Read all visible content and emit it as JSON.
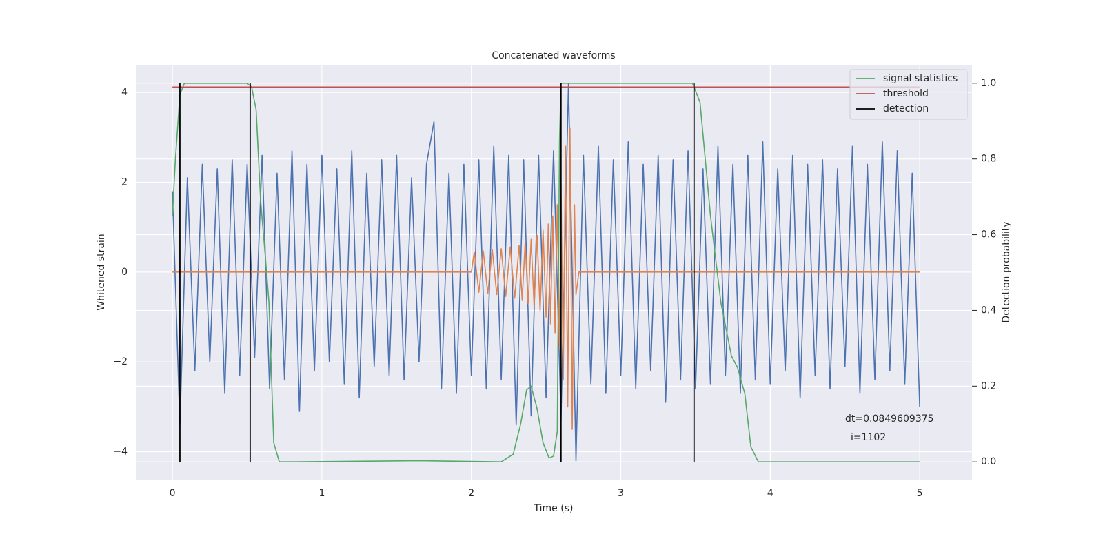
{
  "chart_data": {
    "type": "line",
    "title": "Concatenated waveforms",
    "xlabel": "Time (s)",
    "ylabel": "Whitened strain",
    "y2label": "Detection probability",
    "xlim": [
      -0.245,
      5.35
    ],
    "ylim": [
      -4.62,
      4.6
    ],
    "y2lim": [
      -0.047,
      1.047
    ],
    "xticks": [
      0,
      1,
      2,
      3,
      4,
      5
    ],
    "yticks": [
      {
        "value": -4,
        "label": "−4"
      },
      {
        "value": -2,
        "label": "−2"
      },
      0,
      2,
      4
    ],
    "y2ticks": [
      {
        "value": 0,
        "label": "0.0"
      },
      0.2,
      0.4,
      0.6,
      0.8,
      {
        "value": 1,
        "label": "1.0"
      }
    ],
    "grid": true,
    "legend": "upper right",
    "series": [
      {
        "color": "#4c72b0",
        "x": [
          0,
          0.05,
          0.1,
          0.15,
          0.2,
          0.25,
          0.3,
          0.35,
          0.4,
          0.45,
          0.5,
          0.55,
          0.6,
          0.65,
          0.7,
          0.75,
          0.8,
          0.85,
          0.9,
          0.95,
          1,
          1.05,
          1.1,
          1.15,
          1.2,
          1.25,
          1.3,
          1.35,
          1.4,
          1.45,
          1.5,
          1.55,
          1.6,
          1.65,
          1.7,
          1.75,
          1.8,
          1.85,
          1.9,
          1.95,
          2,
          2.05,
          2.1,
          2.15,
          2.2,
          2.25,
          2.3,
          2.35,
          2.4,
          2.45,
          2.5,
          2.55,
          2.6,
          2.65,
          2.7,
          2.75,
          2.8,
          2.85,
          2.9,
          2.95,
          3,
          3.05,
          3.1,
          3.15,
          3.2,
          3.25,
          3.3,
          3.35,
          3.4,
          3.45,
          3.5,
          3.55,
          3.6,
          3.65,
          3.7,
          3.75,
          3.8,
          3.85,
          3.9,
          3.95,
          4,
          4.05,
          4.1,
          4.15,
          4.2,
          4.25,
          4.3,
          4.35,
          4.4,
          4.45,
          4.5,
          4.55,
          4.6,
          4.65,
          4.7,
          4.75,
          4.8,
          4.85,
          4.9,
          4.95,
          5
        ],
        "values": [
          1.8,
          -3.4,
          2.1,
          -2.2,
          2.4,
          -2.0,
          2.3,
          -2.7,
          2.5,
          -2.3,
          2.4,
          -1.9,
          2.6,
          -2.6,
          2.2,
          -2.4,
          2.7,
          -3.1,
          2.4,
          -2.2,
          2.6,
          -2.0,
          2.3,
          -2.5,
          2.7,
          -2.8,
          2.2,
          -2.1,
          2.5,
          -2.3,
          2.6,
          -2.4,
          2.1,
          -2.0,
          2.4,
          3.35,
          -2.6,
          2.2,
          -2.7,
          2.4,
          -2.3,
          2.5,
          -2.6,
          2.8,
          -2.4,
          2.6,
          -3.4,
          2.5,
          -3.2,
          2.6,
          -2.8,
          2.7,
          -3.3,
          4.2,
          -4.2,
          2.6,
          -2.5,
          2.8,
          -2.7,
          2.5,
          -2.3,
          2.9,
          -2.6,
          2.4,
          -2.2,
          2.6,
          -2.9,
          2.5,
          -2.4,
          2.7,
          -2.6,
          2.3,
          -2.5,
          2.8,
          -2.3,
          2.4,
          -2.7,
          2.6,
          -2.4,
          2.9,
          -2.5,
          2.3,
          -2.2,
          2.6,
          -2.8,
          2.4,
          -2.3,
          2.5,
          -2.6,
          2.3,
          -2.1,
          2.8,
          -2.7,
          2.4,
          -2.4,
          2.9,
          -2.2,
          2.7,
          -2.5,
          2.2,
          -3.0
        ]
      },
      {
        "color": "#dd8452",
        "x": [
          0,
          2,
          2.02,
          2.05,
          2.08,
          2.11,
          2.14,
          2.17,
          2.2,
          2.23,
          2.26,
          2.29,
          2.32,
          2.34,
          2.36,
          2.38,
          2.4,
          2.42,
          2.44,
          2.46,
          2.48,
          2.5,
          2.515,
          2.53,
          2.545,
          2.56,
          2.575,
          2.59,
          2.6,
          2.615,
          2.63,
          2.645,
          2.66,
          2.675,
          2.69,
          2.7,
          2.72,
          5
        ],
        "values": [
          0,
          0,
          0.45,
          -0.45,
          0.47,
          -0.48,
          0.5,
          -0.5,
          0.52,
          -0.54,
          0.56,
          -0.58,
          0.6,
          -0.63,
          0.66,
          -0.7,
          0.73,
          -0.77,
          0.82,
          -0.87,
          0.93,
          -1.0,
          1.07,
          -1.15,
          1.25,
          -1.35,
          1.5,
          -1.7,
          2.0,
          -2.4,
          2.8,
          -3.0,
          3.2,
          -3.5,
          1.5,
          -0.5,
          0,
          0
        ]
      },
      {
        "name": "signal statistics",
        "color": "#55a868",
        "axis": "y2",
        "x": [
          0,
          0.02,
          0.05,
          0.08,
          0.12,
          0.5,
          0.53,
          0.56,
          0.59,
          0.62,
          0.646,
          0.678,
          0.715,
          0.8,
          1.65,
          2.2,
          2.28,
          2.33,
          2.37,
          2.4,
          2.44,
          2.48,
          2.52,
          2.55,
          2.575,
          2.59,
          2.6,
          2.65,
          3.48,
          3.53,
          3.6,
          3.67,
          3.74,
          3.78,
          3.83,
          3.87,
          3.92,
          5
        ],
        "values": [
          0.65,
          0.8,
          0.97,
          1.0,
          1.0,
          1.0,
          0.99,
          0.93,
          0.69,
          0.55,
          0.42,
          0.05,
          0.0,
          0.0,
          0.003,
          0.0,
          0.02,
          0.1,
          0.19,
          0.2,
          0.14,
          0.05,
          0.01,
          0.015,
          0.08,
          0.85,
          1.0,
          1.0,
          1.0,
          0.95,
          0.65,
          0.42,
          0.28,
          0.25,
          0.18,
          0.04,
          0.0,
          0.0
        ]
      },
      {
        "name": "threshold",
        "color": "#c44e52",
        "axis": "y2",
        "x": [
          0,
          5
        ],
        "values": [
          0.99,
          0.99
        ]
      }
    ],
    "detections": {
      "name": "detection",
      "color": "#000000",
      "axis": "y2",
      "x": [
        0.05,
        0.52,
        2.6,
        3.49
      ],
      "ymin": 0,
      "ymax": 1
    },
    "annotation": [
      "dt=0.0849609375",
      "i=1102"
    ]
  }
}
